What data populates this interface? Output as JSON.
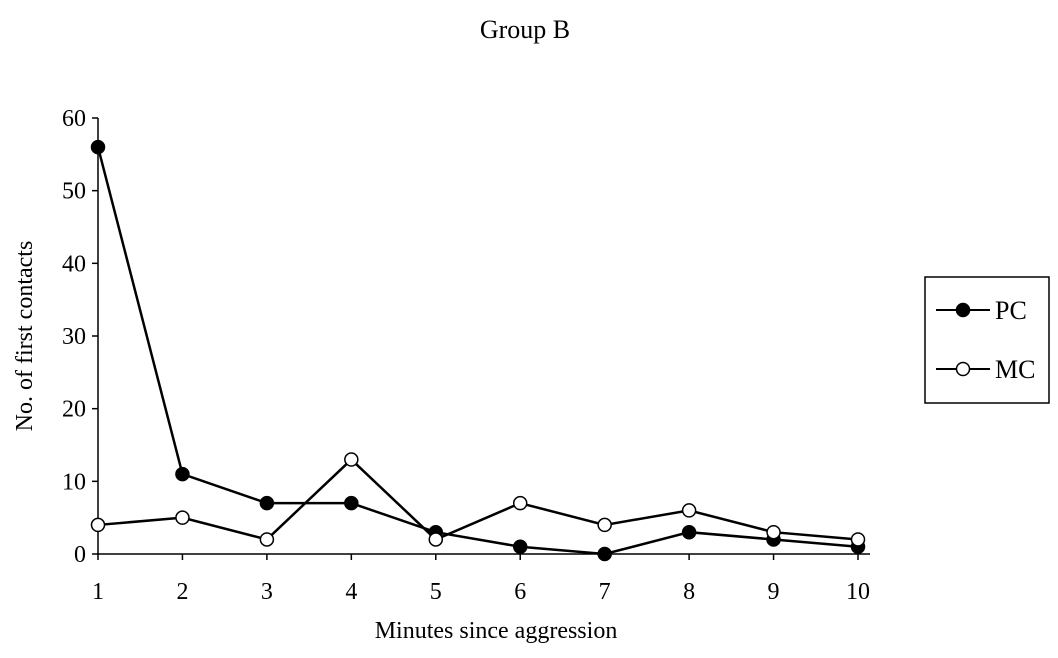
{
  "chart_data": {
    "type": "line",
    "title": "Group B",
    "xlabel": "Minutes since aggression",
    "ylabel": "No. of first contacts",
    "x": [
      1,
      2,
      3,
      4,
      5,
      6,
      7,
      8,
      9,
      10
    ],
    "xlim": [
      1,
      10
    ],
    "ylim": [
      0,
      60
    ],
    "yticks": [
      0,
      10,
      20,
      30,
      40,
      50,
      60
    ],
    "xticks": [
      1,
      2,
      3,
      4,
      5,
      6,
      7,
      8,
      9,
      10
    ],
    "grid": false,
    "legend_position": "right",
    "series": [
      {
        "name": "PC",
        "marker": "filled-circle",
        "color": "#000000",
        "values": [
          56,
          11,
          7,
          7,
          3,
          1,
          0,
          3,
          2,
          1
        ]
      },
      {
        "name": "MC",
        "marker": "open-circle",
        "color": "#000000",
        "values": [
          4,
          5,
          2,
          13,
          2,
          7,
          4,
          6,
          3,
          2
        ]
      }
    ]
  }
}
